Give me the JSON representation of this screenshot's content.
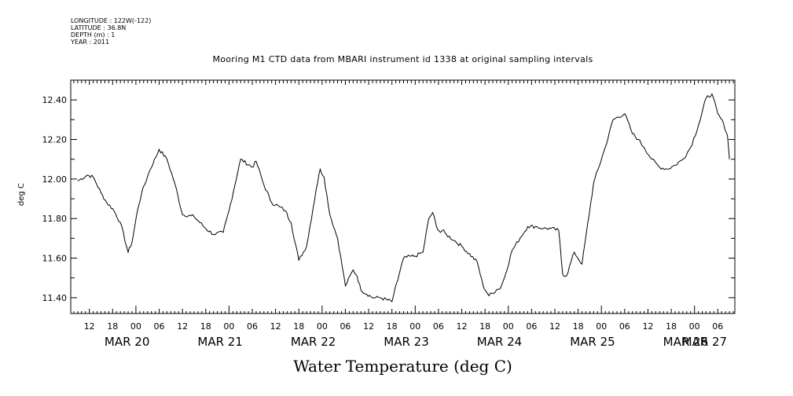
{
  "header": {
    "longitude": "LONGITUDE : 122W(-122)",
    "latitude": "LATITUDE : 36.8N",
    "depth": "DEPTH (m) : 1",
    "year": "YEAR : 2011"
  },
  "chart_data": {
    "type": "line",
    "title": "Mooring M1 CTD data from MBARI instrument id 1338 at original sampling intervals",
    "bottom_title": "Water Temperature (deg C)",
    "ylabel": "deg C",
    "xlabel": "",
    "ylim": [
      11.32,
      12.5
    ],
    "yticks": [
      "11.40",
      "11.60",
      "11.80",
      "12.00",
      "12.20",
      "12.40"
    ],
    "xlim_hours_from_mar20_00": [
      -16.8,
      154.4
    ],
    "hour_tick_labels": [
      "12",
      "18",
      "00",
      "06",
      "12",
      "18",
      "00",
      "06",
      "12",
      "18",
      "00",
      "06",
      "12",
      "18",
      "00",
      "06",
      "12",
      "18",
      "00",
      "06",
      "12",
      "18",
      "00",
      "06",
      "12",
      "18",
      "00",
      "06"
    ],
    "day_labels": [
      "MAR 20",
      "MAR 21",
      "MAR 22",
      "MAR 23",
      "MAR 24",
      "MAR 25",
      "MAR 26",
      "MAR 27"
    ],
    "grid": false,
    "series": [
      {
        "name": "",
        "color": "#000000",
        "x": [
          -15,
          -12.5,
          -11,
          -9,
          -7.5,
          -6,
          -4,
          -2,
          -1,
          0.5,
          1.5,
          3.5,
          6,
          8,
          10,
          12,
          15,
          18,
          20,
          22.5,
          24,
          27,
          30,
          31,
          33,
          35,
          37,
          38.5,
          40,
          42,
          44,
          46.5,
          47.5,
          48.5,
          50,
          52,
          54,
          56,
          57,
          58,
          61,
          63,
          66,
          69,
          71,
          72,
          74,
          75.5,
          76.5,
          77.5,
          78.5,
          79,
          80,
          82,
          84,
          88,
          89.5,
          91,
          93,
          94,
          95,
          97,
          99,
          101,
          103,
          105,
          107,
          109,
          110,
          111,
          113,
          115,
          118,
          121,
          123,
          126,
          128,
          129.5,
          131,
          133,
          135,
          137,
          139,
          141,
          143,
          145,
          147,
          148.5,
          150,
          151.5,
          152.5,
          153
        ],
        "y": [
          11.99,
          12.02,
          12.01,
          11.93,
          11.88,
          11.85,
          11.78,
          11.63,
          11.68,
          11.85,
          11.93,
          12.04,
          12.15,
          12.1,
          11.98,
          11.82,
          11.81,
          11.75,
          11.72,
          11.73,
          11.84,
          12.1,
          12.06,
          12.09,
          11.97,
          11.88,
          11.86,
          11.84,
          11.78,
          11.59,
          11.66,
          11.95,
          12.05,
          12.01,
          11.82,
          11.7,
          11.46,
          11.54,
          11.51,
          11.44,
          11.4,
          11.4,
          11.38,
          11.6,
          11.61,
          11.61,
          11.63,
          11.8,
          11.83,
          11.76,
          11.73,
          11.74,
          11.72,
          11.69,
          11.66,
          11.58,
          11.46,
          11.41,
          11.44,
          11.45,
          11.5,
          11.64,
          11.7,
          11.76,
          11.76,
          11.75,
          11.75,
          11.74,
          11.52,
          11.51,
          11.63,
          11.57,
          11.98,
          12.16,
          12.3,
          12.33,
          12.23,
          12.2,
          12.16,
          12.1,
          12.06,
          12.05,
          12.07,
          12.1,
          12.16,
          12.27,
          12.41,
          12.43,
          12.33,
          12.28,
          12.22,
          12.1
        ]
      }
    ]
  }
}
